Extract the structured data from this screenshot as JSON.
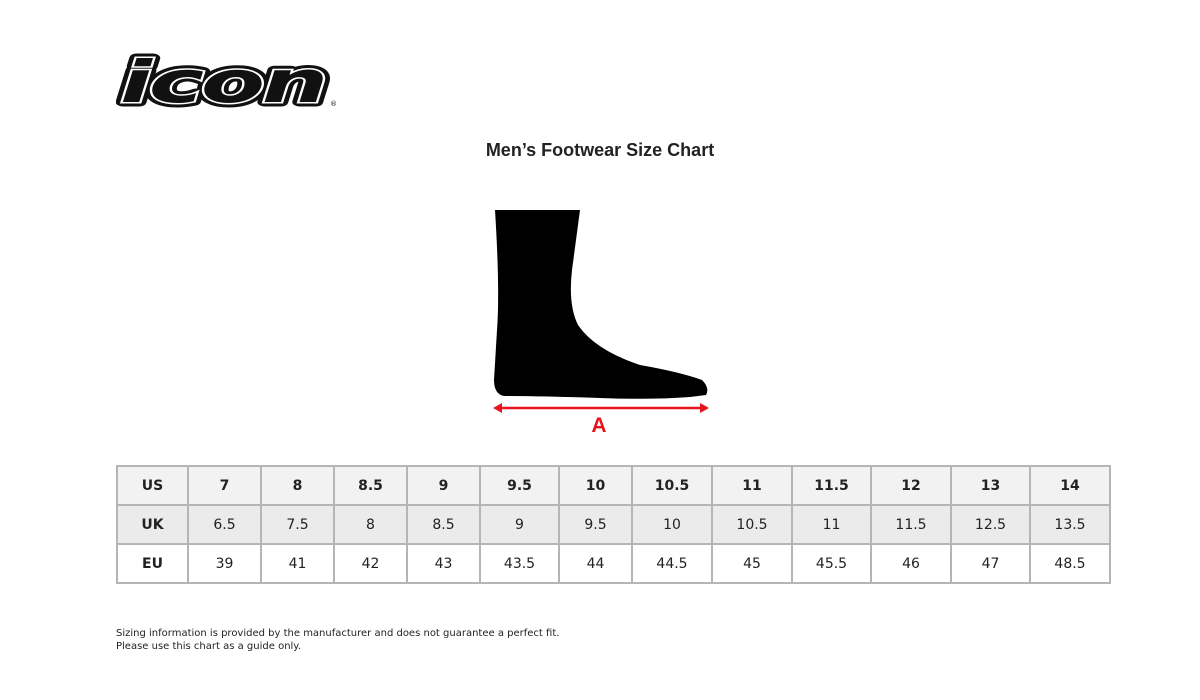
{
  "brand": {
    "logo_text": "icon",
    "registered_mark": "®"
  },
  "title": "Men’s Footwear Size Chart",
  "diagram": {
    "measure_label": "A",
    "arrow_color": "#e8141c"
  },
  "table": {
    "rows": [
      {
        "label": "US",
        "values": [
          "7",
          "8",
          "8.5",
          "9",
          "9.5",
          "10",
          "10.5",
          "11",
          "11.5",
          "12",
          "13",
          "14"
        ]
      },
      {
        "label": "UK",
        "values": [
          "6.5",
          "7.5",
          "8",
          "8.5",
          "9",
          "9.5",
          "10",
          "10.5",
          "11",
          "11.5",
          "12.5",
          "13.5"
        ]
      },
      {
        "label": "EU",
        "values": [
          "39",
          "41",
          "42",
          "43",
          "43.5",
          "44",
          "44.5",
          "45",
          "45.5",
          "46",
          "47",
          "48.5"
        ]
      }
    ]
  },
  "note": {
    "line1": "Sizing information is provided by the manufacturer and does not guarantee a perfect fit.",
    "line2": "Please use this chart as a guide only."
  }
}
